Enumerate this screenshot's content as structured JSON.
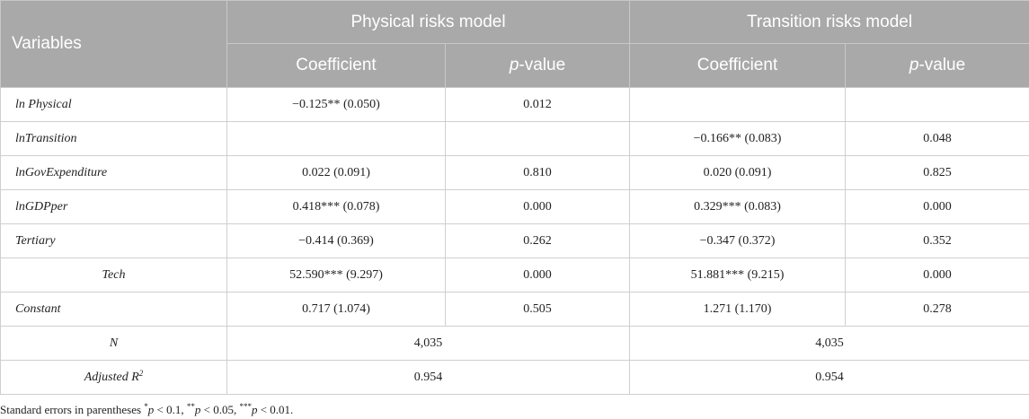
{
  "table": {
    "header": {
      "variables": "Variables",
      "groups": [
        "Physical risks model",
        "Transition risks model"
      ],
      "coefficient": "Coefficient",
      "pvalue_prefix": "p",
      "pvalue_suffix": "-value"
    },
    "rows": [
      {
        "label": "ln Physical",
        "phys_coef": "−0.125** (0.050)",
        "phys_p": "0.012",
        "trans_coef": "",
        "trans_p": ""
      },
      {
        "label": "lnTransition",
        "phys_coef": "",
        "phys_p": "",
        "trans_coef": "−0.166** (0.083)",
        "trans_p": "0.048"
      },
      {
        "label": "lnGovExpenditure",
        "phys_coef": "0.022 (0.091)",
        "phys_p": "0.810",
        "trans_coef": "0.020 (0.091)",
        "trans_p": "0.825"
      },
      {
        "label": "lnGDPper",
        "phys_coef": "0.418*** (0.078)",
        "phys_p": "0.000",
        "trans_coef": "0.329*** (0.083)",
        "trans_p": "0.000"
      },
      {
        "label": "Tertiary",
        "phys_coef": "−0.414 (0.369)",
        "phys_p": "0.262",
        "trans_coef": "−0.347 (0.372)",
        "trans_p": "0.352"
      },
      {
        "label": "Tech",
        "phys_coef": "52.590*** (9.297)",
        "phys_p": "0.000",
        "trans_coef": "51.881*** (9.215)",
        "trans_p": "0.000"
      },
      {
        "label": "Constant",
        "phys_coef": "0.717 (1.074)",
        "phys_p": "0.505",
        "trans_coef": "1.271 (1.170)",
        "trans_p": "0.278"
      }
    ],
    "n_row": {
      "label": "N",
      "phys": "4,035",
      "trans": "4,035"
    },
    "r2_row": {
      "label": "Adjusted R",
      "label_sup": "2",
      "phys": "0.954",
      "trans": "0.954"
    }
  },
  "footnote": {
    "lead": "Standard errors in parentheses ",
    "p": "p",
    "star1": "*",
    "t1": " < 0.1, ",
    "star2": "**",
    "t2": " < 0.05, ",
    "star3": "***",
    "t3": " < 0.01."
  }
}
